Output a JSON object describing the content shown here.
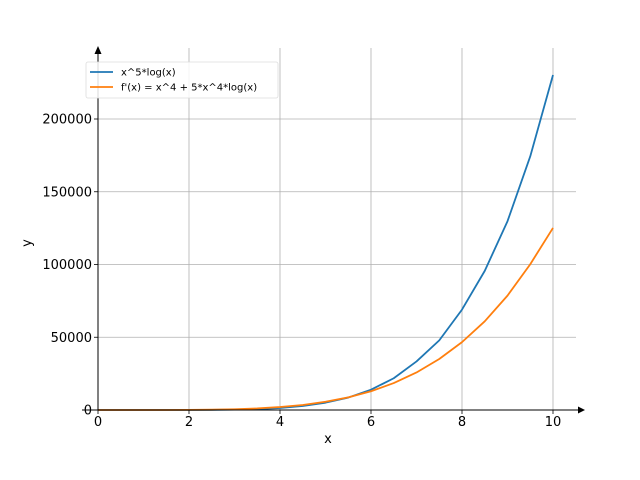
{
  "chart_data": {
    "type": "line",
    "xlabel": "x",
    "ylabel": "y",
    "xlim": [
      0,
      10.5
    ],
    "ylim": [
      0,
      240000
    ],
    "x_ticks": [
      0,
      2,
      4,
      6,
      8,
      10
    ],
    "y_ticks": [
      0,
      50000,
      100000,
      150000,
      200000
    ],
    "grid": true,
    "legend_position": "top-left",
    "series": [
      {
        "name": "x^5*log(x)",
        "color": "#1f77b4",
        "x": [
          0,
          0.5,
          1,
          1.5,
          2,
          2.5,
          3,
          3.5,
          4,
          4.5,
          5,
          5.5,
          6,
          6.5,
          7,
          7.5,
          8,
          8.5,
          9,
          9.5,
          10
        ],
        "y": [
          0,
          -22,
          0,
          3,
          22,
          90,
          267,
          658,
          1420,
          2775,
          5030,
          8553,
          13933,
          21823,
          33384,
          47857,
          69004,
          95612,
          129751,
          174326,
          230259
        ]
      },
      {
        "name": "f'(x) = x^4 + 5*x^4*log(x)",
        "color": "#ff7f0e",
        "x": [
          0,
          0.5,
          1,
          1.5,
          2,
          2.5,
          3,
          3.5,
          4,
          4.5,
          5,
          5.5,
          6,
          6.5,
          7,
          7.5,
          8,
          8.5,
          9,
          9.5,
          10
        ],
        "y": [
          0,
          -0.2,
          1,
          15,
          71,
          218,
          526,
          1098,
          2031,
          3451,
          5656,
          8683,
          12894,
          18500,
          25779,
          35045,
          46645,
          60933,
          78625,
          100186,
          125129
        ]
      }
    ]
  }
}
